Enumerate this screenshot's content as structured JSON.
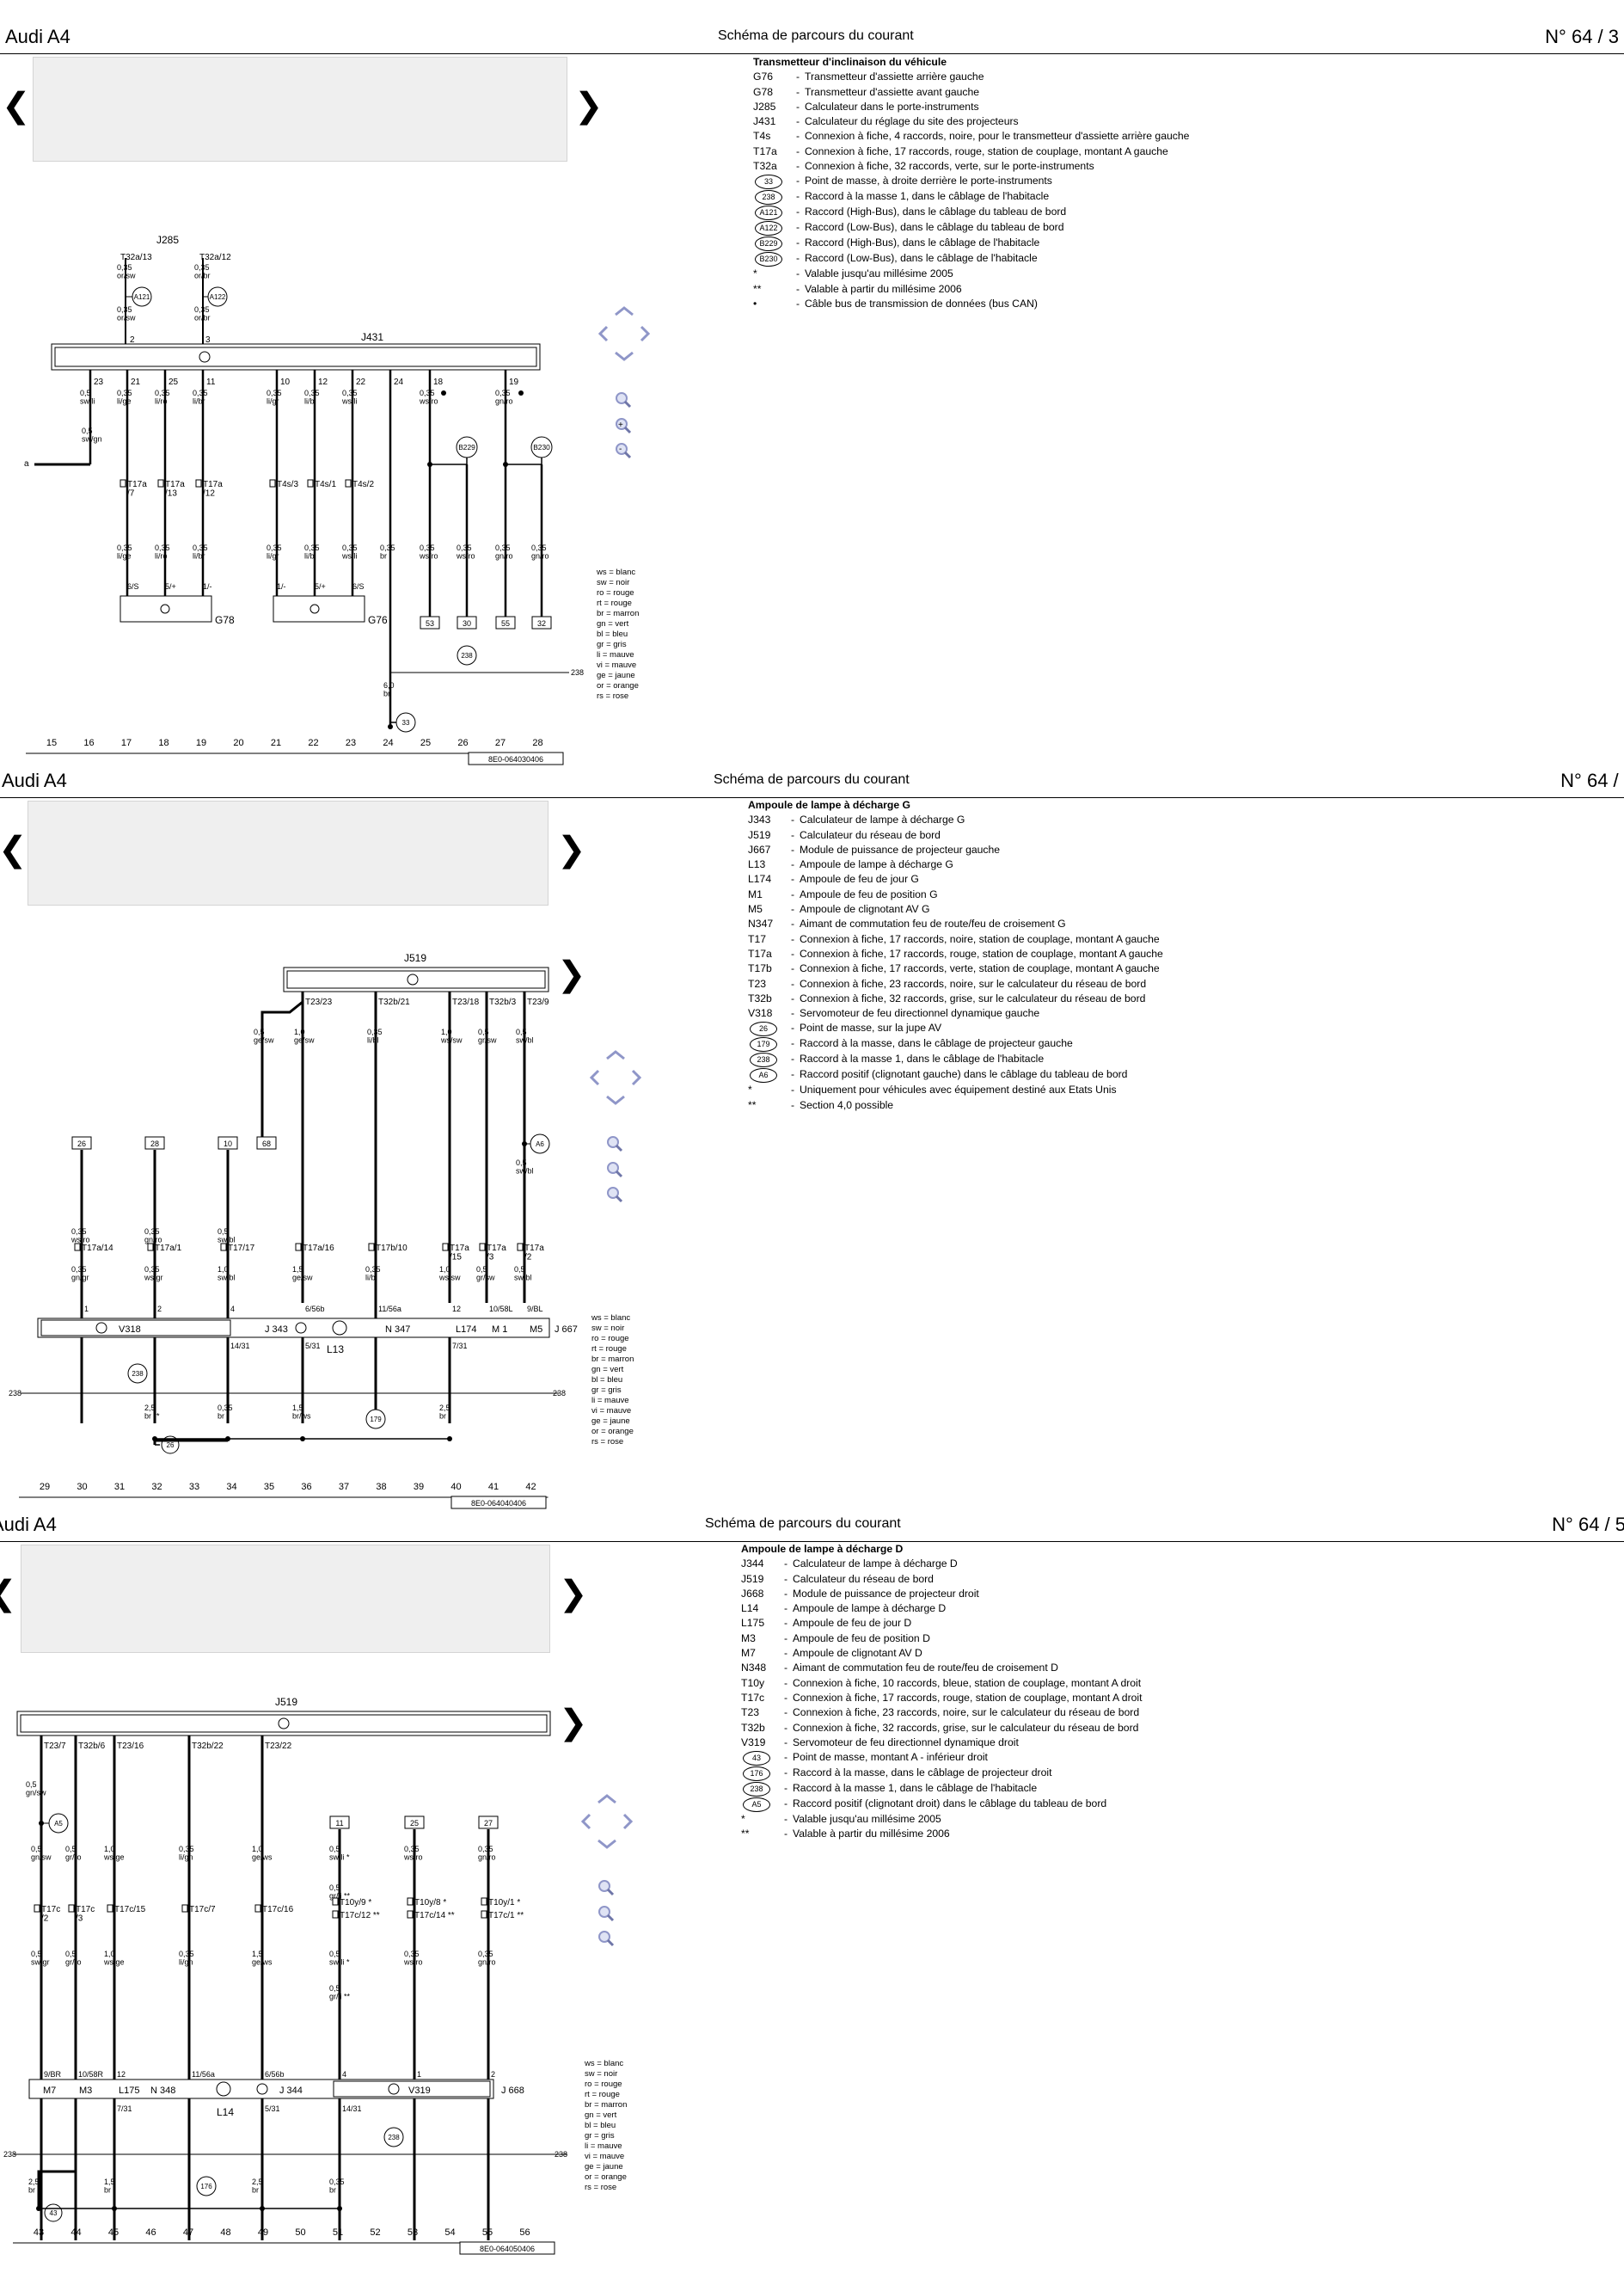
{
  "pages": [
    {
      "model": "Audi A4",
      "title": "Schéma de parcours du courant",
      "number": "N°  64 / 3",
      "legend_heading": "Transmetteur d'inclinaison du véhicule",
      "legend": [
        {
          "code": "G76",
          "text": "Transmetteur d'assiette arrière gauche"
        },
        {
          "code": "G78",
          "text": "Transmetteur d'assiette avant gauche"
        },
        {
          "code": "J285",
          "text": "Calculateur dans le porte-instruments"
        },
        {
          "code": "J431",
          "text": "Calculateur du réglage du site des projecteurs"
        },
        {
          "code": "T4s",
          "text": "Connexion à fiche, 4 raccords, noire, pour le transmetteur d'assiette arrière gauche"
        },
        {
          "code": "T17a",
          "text": "Connexion à fiche, 17 raccords, rouge, station de couplage, montant A gauche"
        },
        {
          "code": "T32a",
          "text": "Connexion à fiche, 32 raccords, verte, sur le porte-instruments"
        },
        {
          "code": "33",
          "text": "Point de masse, à droite derrière le porte-instruments"
        },
        {
          "code": "238",
          "text": "Raccord à la masse 1, dans le câblage de l'habitacle"
        },
        {
          "code": "A121",
          "text": "Raccord (High-Bus), dans le câblage du tableau de bord"
        },
        {
          "code": "A122",
          "text": "Raccord (Low-Bus), dans le câblage du tableau de bord"
        },
        {
          "code": "B229",
          "text": "Raccord (High-Bus), dans le câblage de l'habitacle"
        },
        {
          "code": "B230",
          "text": "Raccord (Low-Bus), dans le câblage de l'habitacle"
        },
        {
          "code": "*",
          "text": "Valable jusqu'au millésime 2005"
        },
        {
          "code": "**",
          "text": "Valable à partir du millésime 2006"
        },
        {
          "code": "•",
          "text": "Câble bus de transmission de données (bus CAN)"
        }
      ],
      "tracks": [
        "15",
        "16",
        "17",
        "18",
        "19",
        "20",
        "21",
        "22",
        "23",
        "24",
        "25",
        "26",
        "27",
        "28"
      ],
      "doc_ref": "8E0-064030406"
    },
    {
      "model": "Audi A4",
      "title": "Schéma de parcours du courant",
      "number": "N°  64 / 4",
      "legend_heading": "Ampoule de lampe à décharge G",
      "legend": [
        {
          "code": "J343",
          "text": "Calculateur de lampe à décharge G"
        },
        {
          "code": "J519",
          "text": "Calculateur du réseau de bord"
        },
        {
          "code": "J667",
          "text": "Module de puissance de projecteur gauche"
        },
        {
          "code": "L13",
          "text": "Ampoule de lampe à décharge G"
        },
        {
          "code": "L174",
          "text": "Ampoule de feu de jour G"
        },
        {
          "code": "M1",
          "text": "Ampoule de feu de position G"
        },
        {
          "code": "M5",
          "text": "Ampoule de clignotant AV G"
        },
        {
          "code": "N347",
          "text": "Aimant de commutation feu de route/feu de croisement G"
        },
        {
          "code": "T17",
          "text": "Connexion à fiche, 17 raccords, noire, station de couplage, montant A gauche"
        },
        {
          "code": "T17a",
          "text": "Connexion à fiche, 17 raccords, rouge, station de couplage, montant A gauche"
        },
        {
          "code": "T17b",
          "text": "Connexion à fiche, 17 raccords, verte, station de couplage, montant A gauche"
        },
        {
          "code": "T23",
          "text": "Connexion à fiche, 23 raccords, noire, sur le calculateur du réseau de bord"
        },
        {
          "code": "T32b",
          "text": "Connexion à fiche, 32 raccords, grise, sur le calculateur du réseau de bord"
        },
        {
          "code": "V318",
          "text": "Servomoteur de feu directionnel dynamique gauche"
        },
        {
          "code": "26",
          "text": "Point de masse, sur la jupe AV"
        },
        {
          "code": "179",
          "text": "Raccord à la masse, dans le câblage de projecteur gauche"
        },
        {
          "code": "238",
          "text": "Raccord à la masse 1, dans le câblage de l'habitacle"
        },
        {
          "code": "A6",
          "text": "Raccord positif (clignotant gauche) dans le câblage du tableau de bord"
        },
        {
          "code": "*",
          "text": "Uniquement pour véhicules avec équipement destiné aux Etats Unis"
        },
        {
          "code": "**",
          "text": "Section 4,0 possible"
        }
      ],
      "tracks": [
        "29",
        "30",
        "31",
        "32",
        "33",
        "34",
        "35",
        "36",
        "37",
        "38",
        "39",
        "40",
        "41",
        "42"
      ],
      "doc_ref": "8E0-064040406"
    },
    {
      "model": "Audi A4",
      "title": "Schéma de parcours du courant",
      "number": "N°  64 / 5",
      "legend_heading": "Ampoule de lampe à décharge D",
      "legend": [
        {
          "code": "J344",
          "text": "Calculateur de lampe à décharge D"
        },
        {
          "code": "J519",
          "text": "Calculateur du réseau de bord"
        },
        {
          "code": "J668",
          "text": "Module de puissance de projecteur droit"
        },
        {
          "code": "L14",
          "text": "Ampoule de lampe à décharge D"
        },
        {
          "code": "L175",
          "text": "Ampoule de feu de jour D"
        },
        {
          "code": "M3",
          "text": "Ampoule de feu de position D"
        },
        {
          "code": "M7",
          "text": "Ampoule de clignotant AV D"
        },
        {
          "code": "N348",
          "text": "Aimant de commutation feu de route/feu de croisement D"
        },
        {
          "code": "T10y",
          "text": "Connexion à fiche, 10 raccords, bleue, station de couplage, montant A droit"
        },
        {
          "code": "T17c",
          "text": "Connexion à fiche, 17 raccords, rouge, station de couplage, montant A droit"
        },
        {
          "code": "T23",
          "text": "Connexion à fiche, 23 raccords, noire, sur le calculateur du réseau de bord"
        },
        {
          "code": "T32b",
          "text": "Connexion à fiche, 32 raccords, grise, sur le calculateur du réseau de bord"
        },
        {
          "code": "V319",
          "text": "Servomoteur de feu directionnel dynamique droit"
        },
        {
          "code": "43",
          "text": "Point de masse, montant A - inférieur droit"
        },
        {
          "code": "176",
          "text": "Raccord à la masse, dans le câblage de projecteur droit"
        },
        {
          "code": "238",
          "text": "Raccord à la masse 1, dans le câblage de l'habitacle"
        },
        {
          "code": "A5",
          "text": "Raccord positif (clignotant droit) dans le câblage du tableau de bord"
        },
        {
          "code": "*",
          "text": "Valable jusqu'au millésime 2005"
        },
        {
          "code": "**",
          "text": "Valable à partir du millésime 2006"
        }
      ],
      "tracks": [
        "43",
        "44",
        "45",
        "46",
        "47",
        "48",
        "49",
        "50",
        "51",
        "52",
        "53",
        "54",
        "55",
        "56"
      ],
      "doc_ref": "8E0-064050406"
    }
  ],
  "colour_code": [
    "ws = blanc",
    "sw = noir",
    "ro = rouge",
    "rt = rouge",
    "br = marron",
    "gn = vert",
    "bl = bleu",
    "gr = gris",
    "li = mauve",
    "vi = mauve",
    "ge = jaune",
    "or = orange",
    "rs = rose"
  ],
  "p1_labels": {
    "J285": "J285",
    "J431": "J431",
    "T32a13": "T32a/13",
    "T32a12": "T32a/12",
    "w_a": "0,35\nor/sw",
    "w_b": "0,35\nor/br",
    "A121": "A121",
    "A122": "A122",
    "pins": [
      "2",
      "3",
      "23",
      "21",
      "25",
      "11",
      "10",
      "12",
      "22",
      "24",
      "18",
      "19"
    ],
    "top_wires": [
      "0,5\nsw/li",
      "0,35\nli/ge",
      "0,35\nli/ro",
      "0,35\nli/br",
      "0,35\nli/gr",
      "0,35\nli/bl",
      "0,35\nws/li",
      "0,35\nws/ro",
      "0,35\ngn/ro"
    ],
    "sw_gn": "0,5\nsw/gn",
    "a": "a",
    "B229": "B229",
    "B230": "B230",
    "conns": [
      "T17a\n/7",
      "T17a\n/13",
      "T17a\n/12",
      "T4s/3",
      "T4s/1",
      "T4s/2"
    ],
    "low_wires": [
      "0,35\nli/ge",
      "0,35\nli/ro",
      "0,35\nli/br",
      "0,35\nli/gr",
      "0,35\nli/bl",
      "0,35\nws/li",
      "0,35\nbr",
      "0,35\nws/ro",
      "0,35\nws/ro",
      "0,35\ngn/ro",
      "0,35\ngn/ro"
    ],
    "g78pins": [
      "6/S",
      "5/+",
      "1/-"
    ],
    "g76pins": [
      "1/-",
      "5/+",
      "6/S"
    ],
    "G78": "G78",
    "G76": "G76",
    "refs": [
      "53",
      "30",
      "55",
      "32"
    ],
    "g238": "238",
    "n238": "238",
    "w60": "6,0\nbr",
    "g33": "33"
  },
  "p2_labels": {
    "J519": "J519",
    "tops": [
      "T23/23",
      "T32b/21",
      "T23/18",
      "T32b/3",
      "T23/9"
    ],
    "wa": "0,5\nge/sw",
    "wb": "1,0\nge/sw",
    "wc": "0,35\nli/bl",
    "wd": "1,0\nws/sw",
    "we": "0,5\ngr/sw",
    "wf": "0,5\nsw/bl",
    "ref68": "68",
    "A6": "A6",
    "wg": "0,5\nsw/bl",
    "refs": [
      "26",
      "28",
      "10"
    ],
    "mid": [
      "0,35\nws/ro",
      "0,35\ngn/ro",
      "0,5\nsw/bl"
    ],
    "conns": [
      "T17a/14",
      "T17a/1",
      "T17/17",
      "T17a/16",
      "T17b/10",
      "T17a\n/15",
      "T17a\n/3",
      "T17a\n/2"
    ],
    "low": [
      "0,35\ngn/gr",
      "0,35\nws/gr",
      "1,0\nsw/bl",
      "1,5\nge/sw",
      "0,35\nli/bl",
      "1,0\nws/sw",
      "0,5\ngr/sw",
      "0,5\nsw/bl"
    ],
    "pins": [
      "1",
      "2",
      "4",
      "6/56b",
      "11/56a",
      "12",
      "10/58L",
      "9/BL"
    ],
    "comp": [
      "V318",
      "J 343",
      "N 347",
      "L174",
      "M 1",
      "M5",
      "J 667",
      "L13"
    ],
    "gnd": [
      "14/31",
      "5/31",
      "7/31"
    ],
    "g238": "238",
    "n238l": "238",
    "n238r": "238",
    "g179": "179",
    "g26": "26",
    "gw": [
      "2,5\nbr **",
      "0,35\nbr",
      "1,5\nbr/ws",
      "2,5\nbr"
    ]
  },
  "p3_labels": {
    "J519": "J519",
    "tops": [
      "T23/7",
      "T32b/6",
      "T23/16",
      "T32b/22",
      "T23/22"
    ],
    "wa": "0,5\ngn/sw",
    "A5": "A5",
    "refs": [
      "11",
      "25",
      "27"
    ],
    "mid": [
      "0,5\ngn/sw",
      "0,5\ngr/ro",
      "1,0\nws/ge",
      "0,35\nli/gn",
      "1,0\nge/ws",
      "0,5\nsw/li *",
      "0,35\nws/ro",
      "0,35\ngn/ro"
    ],
    "mid2": "0,5\ngr/li **",
    "conns": [
      "T17c\n/2",
      "T17c\n/3",
      "T17c/15",
      "T17c/7",
      "T17c/16",
      "T10y/9 *",
      "T17c/12 **",
      "T10y/8 *",
      "T17c/14 **",
      "T10y/1 *",
      "T17c/1 **"
    ],
    "low": [
      "0,5\nsw/gr",
      "0,5\ngr/ro",
      "1,0\nws/ge",
      "0,35\nli/gn",
      "1,5\nge/ws",
      "0,5\nsw/li *",
      "0,5\ngr/li **",
      "0,35\nws/ro",
      "0,35\ngn/ro"
    ],
    "pins": [
      "9/BR",
      "10/58R",
      "12",
      "11/56a",
      "6/56b",
      "4",
      "1",
      "2"
    ],
    "comp": [
      "M7",
      "M3",
      "L175",
      "N 348",
      "J 344",
      "V319",
      "J 668",
      "L14"
    ],
    "gnd": [
      "7/31",
      "5/31",
      "14/31"
    ],
    "g238": "238",
    "n238l": "238",
    "n238r": "238",
    "g176": "176",
    "g43": "43",
    "gw": [
      "2,5\nbr",
      "1,5\nbr",
      "2,5\nbr",
      "0,35\nbr"
    ]
  }
}
